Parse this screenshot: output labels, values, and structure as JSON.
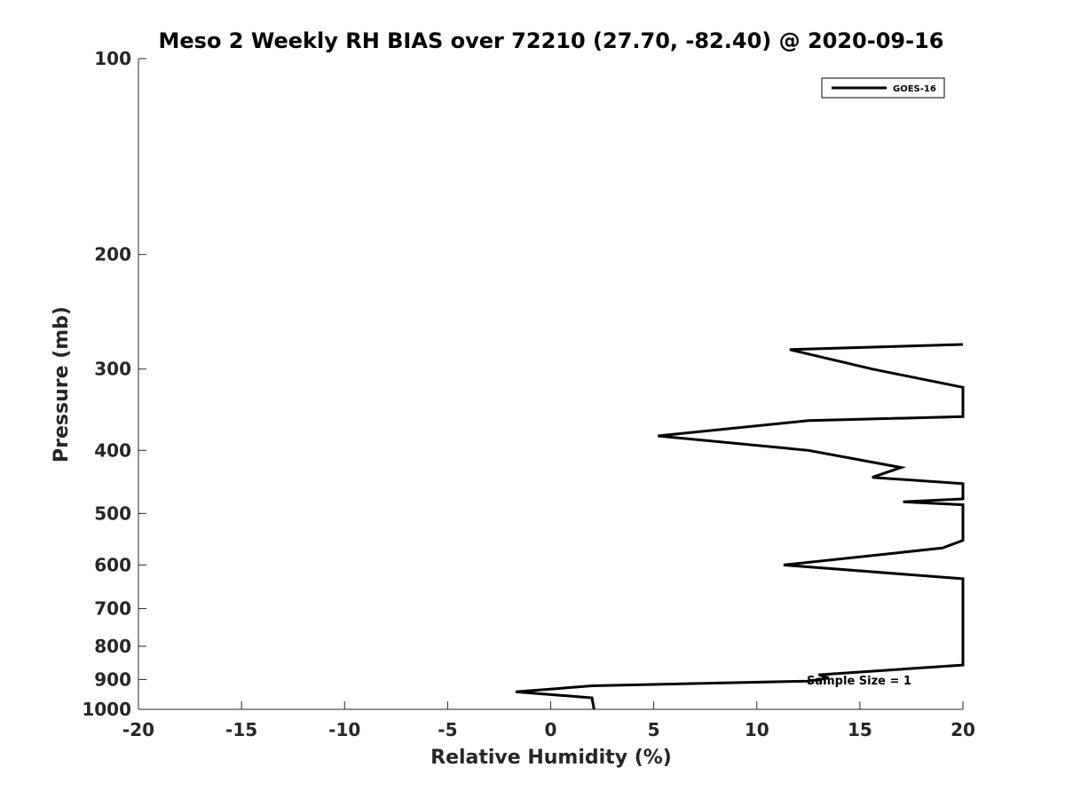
{
  "chart_data": {
    "type": "line",
    "title": "Meso 2 Weekly RH BIAS over 72210 (27.70, -82.40) @ 2020-09-16",
    "xlabel": "Relative Humidity (%)",
    "ylabel": "Pressure (mb)",
    "xlim": [
      -20,
      20
    ],
    "ylim": [
      100,
      1000
    ],
    "y_scale": "log",
    "y_reversed": true,
    "grid": false,
    "legend_position": "top-right",
    "x_ticks": [
      -20,
      -15,
      -10,
      -5,
      0,
      5,
      10,
      15,
      20
    ],
    "x_tick_labels": [
      "-20",
      "-15",
      "-10",
      "-5",
      "0",
      "5",
      "10",
      "15",
      "20"
    ],
    "y_ticks": [
      100,
      200,
      300,
      400,
      500,
      600,
      700,
      800,
      900,
      1000
    ],
    "y_tick_labels": [
      "100",
      "200",
      "300",
      "400",
      "500",
      "600",
      "700",
      "800",
      "900",
      "1000"
    ],
    "line_color": "#000000",
    "series": [
      {
        "name": "GOES-16",
        "x": [
          2.1,
          2.0,
          -1.7,
          2.0,
          12.5,
          13.5,
          13.0,
          20.0,
          20.0,
          11.3,
          19.0,
          20.0,
          20.0,
          17.1,
          20.0,
          20.0,
          15.6,
          17.0,
          12.5,
          5.2,
          12.5,
          20.0,
          20.0,
          15.6,
          11.6,
          20.0
        ],
        "y": [
          1000,
          960,
          940,
          920,
          905,
          895,
          885,
          855,
          630,
          600,
          565,
          550,
          485,
          480,
          475,
          450,
          440,
          425,
          400,
          380,
          360,
          355,
          320,
          300,
          280,
          275
        ]
      }
    ],
    "annotations": [
      "Sample Size = 1"
    ]
  }
}
